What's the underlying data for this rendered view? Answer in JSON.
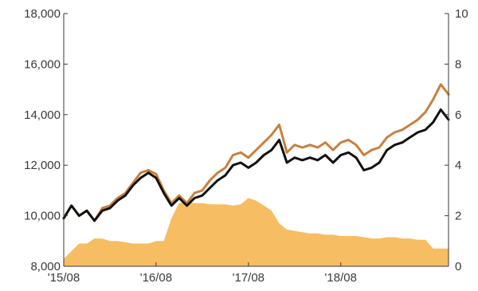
{
  "chart_data": {
    "type": "line",
    "title": "",
    "xlabel": "",
    "ylabel": "",
    "grid": false,
    "legend": "none",
    "x_tick_labels": [
      "'15/08",
      "'16/08",
      "'17/08",
      "'18/08"
    ],
    "x_range": [
      "2015-08",
      "2019-10"
    ],
    "y_left": {
      "range": [
        8000,
        18000
      ],
      "ticks": [
        "8,000",
        "10,000",
        "12,000",
        "14,000",
        "16,000",
        "18,000"
      ]
    },
    "y_right": {
      "range": [
        0,
        10
      ],
      "ticks": [
        "0",
        "2",
        "4",
        "6",
        "8",
        "10"
      ]
    },
    "series": [
      {
        "axis": "right",
        "kind": "area",
        "color": "#f7bd62",
        "x": [
          "2015-08",
          "2015-09",
          "2015-10",
          "2015-11",
          "2015-12",
          "2016-01",
          "2016-02",
          "2016-03",
          "2016-04",
          "2016-05",
          "2016-06",
          "2016-07",
          "2016-08",
          "2016-09",
          "2016-10",
          "2016-11",
          "2016-12",
          "2017-01",
          "2017-02",
          "2017-03",
          "2017-04",
          "2017-05",
          "2017-06",
          "2017-07",
          "2017-08",
          "2017-09",
          "2017-10",
          "2017-11",
          "2017-12",
          "2018-01",
          "2018-02",
          "2018-03",
          "2018-04",
          "2018-05",
          "2018-06",
          "2018-07",
          "2018-08",
          "2018-09",
          "2018-10",
          "2018-11",
          "2018-12",
          "2019-01",
          "2019-02",
          "2019-03",
          "2019-04",
          "2019-05",
          "2019-06",
          "2019-07",
          "2019-08",
          "2019-09",
          "2019-10"
        ],
        "values": [
          0.3,
          0.6,
          0.9,
          0.9,
          1.1,
          1.1,
          1.0,
          1.0,
          0.95,
          0.9,
          0.9,
          0.9,
          1.0,
          1.0,
          1.9,
          2.5,
          2.55,
          2.5,
          2.5,
          2.45,
          2.45,
          2.45,
          2.4,
          2.45,
          2.7,
          2.6,
          2.4,
          2.2,
          1.7,
          1.45,
          1.4,
          1.35,
          1.3,
          1.3,
          1.25,
          1.25,
          1.2,
          1.2,
          1.2,
          1.15,
          1.1,
          1.1,
          1.15,
          1.15,
          1.1,
          1.1,
          1.05,
          1.05,
          0.7,
          0.7,
          0.7
        ]
      },
      {
        "axis": "left",
        "kind": "line",
        "color": "#c8803f",
        "x": [
          "2015-08",
          "2015-09",
          "2015-10",
          "2015-11",
          "2015-12",
          "2016-01",
          "2016-02",
          "2016-03",
          "2016-04",
          "2016-05",
          "2016-06",
          "2016-07",
          "2016-08",
          "2016-09",
          "2016-10",
          "2016-11",
          "2016-12",
          "2017-01",
          "2017-02",
          "2017-03",
          "2017-04",
          "2017-05",
          "2017-06",
          "2017-07",
          "2017-08",
          "2017-09",
          "2017-10",
          "2017-11",
          "2017-12",
          "2018-01",
          "2018-02",
          "2018-03",
          "2018-04",
          "2018-05",
          "2018-06",
          "2018-07",
          "2018-08",
          "2018-09",
          "2018-10",
          "2018-11",
          "2018-12",
          "2019-01",
          "2019-02",
          "2019-03",
          "2019-04",
          "2019-05",
          "2019-06",
          "2019-07",
          "2019-08",
          "2019-09",
          "2019-10"
        ],
        "values": [
          9900,
          10400,
          10000,
          10200,
          9800,
          10300,
          10400,
          10700,
          10900,
          11300,
          11700,
          11800,
          11650,
          11000,
          10500,
          10800,
          10500,
          10900,
          11000,
          11400,
          11700,
          11900,
          12400,
          12500,
          12300,
          12600,
          12900,
          13200,
          13600,
          12500,
          12800,
          12700,
          12800,
          12700,
          12900,
          12600,
          12900,
          13000,
          12800,
          12400,
          12600,
          12700,
          13100,
          13300,
          13400,
          13600,
          13800,
          14100,
          14600,
          15200,
          14800
        ]
      },
      {
        "axis": "left",
        "kind": "line",
        "color": "#111111",
        "x": [
          "2015-08",
          "2015-09",
          "2015-10",
          "2015-11",
          "2015-12",
          "2016-01",
          "2016-02",
          "2016-03",
          "2016-04",
          "2016-05",
          "2016-06",
          "2016-07",
          "2016-08",
          "2016-09",
          "2016-10",
          "2016-11",
          "2016-12",
          "2017-01",
          "2017-02",
          "2017-03",
          "2017-04",
          "2017-05",
          "2017-06",
          "2017-07",
          "2017-08",
          "2017-09",
          "2017-10",
          "2017-11",
          "2017-12",
          "2018-01",
          "2018-02",
          "2018-03",
          "2018-04",
          "2018-05",
          "2018-06",
          "2018-07",
          "2018-08",
          "2018-09",
          "2018-10",
          "2018-11",
          "2018-12",
          "2019-01",
          "2019-02",
          "2019-03",
          "2019-04",
          "2019-05",
          "2019-06",
          "2019-07",
          "2019-08",
          "2019-09",
          "2019-10"
        ],
        "values": [
          9900,
          10400,
          10000,
          10200,
          9800,
          10200,
          10300,
          10600,
          10800,
          11200,
          11500,
          11700,
          11500,
          10900,
          10400,
          10700,
          10400,
          10700,
          10800,
          11100,
          11400,
          11600,
          12000,
          12100,
          11900,
          12100,
          12400,
          12600,
          13000,
          12100,
          12300,
          12200,
          12300,
          12200,
          12400,
          12100,
          12400,
          12500,
          12300,
          11800,
          11900,
          12100,
          12600,
          12800,
          12900,
          13100,
          13300,
          13400,
          13700,
          14200,
          13800
        ]
      }
    ]
  }
}
